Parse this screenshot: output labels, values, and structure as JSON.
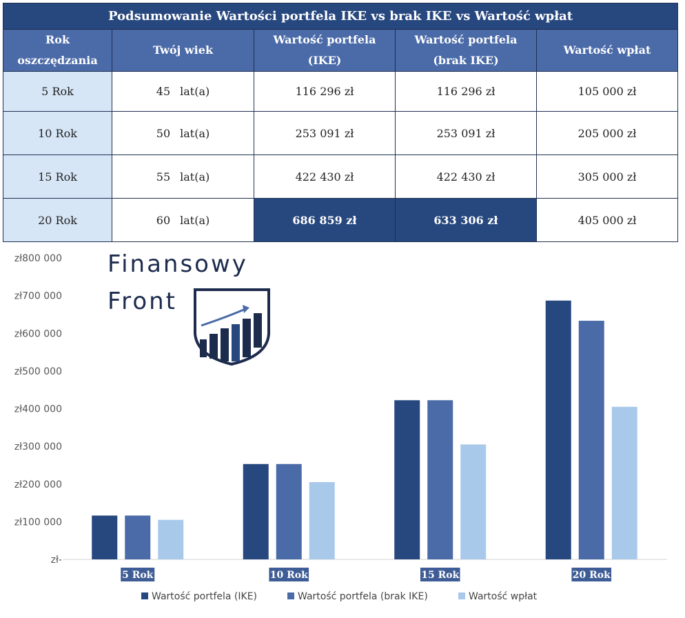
{
  "table": {
    "title": "Podsumowanie Wartości portfela IKE vs brak IKE vs Wartość wpłat",
    "headers": {
      "rok_line1": "Rok",
      "rok_line2": "oszczędzania",
      "wiek": "Twój wiek",
      "ike_line1": "Wartość portfela",
      "ike_line2": "(IKE)",
      "brak_line1": "Wartość portfela",
      "brak_line2": "(brak IKE)",
      "wplaty": "Wartość wpłat"
    },
    "rows": [
      {
        "rok": "5 Rok",
        "wiek": "45",
        "jednostka": "lat(a)",
        "ike": "116 296 zł",
        "brak": "116 296 zł",
        "wplaty": "105 000 zł"
      },
      {
        "rok": "10 Rok",
        "wiek": "50",
        "jednostka": "lat(a)",
        "ike": "253 091 zł",
        "brak": "253 091 zł",
        "wplaty": "205 000 zł"
      },
      {
        "rok": "15 Rok",
        "wiek": "55",
        "jednostka": "lat(a)",
        "ike": "422 430 zł",
        "brak": "422 430 zł",
        "wplaty": "305 000 zł"
      },
      {
        "rok": "20 Rok",
        "wiek": "60",
        "jednostka": "lat(a)",
        "ike": "686 859 zł",
        "brak": "633 306 zł",
        "wplaty": "405 000 zł"
      }
    ]
  },
  "logo": {
    "line1": "Finansowy",
    "line2": "Front"
  },
  "chart_data": {
    "type": "bar",
    "categories": [
      "5 Rok",
      "10 Rok",
      "15 Rok",
      "20 Rok"
    ],
    "series": [
      {
        "name": "Wartość portfela (IKE)",
        "color": "#27477f",
        "values": [
          116296,
          253091,
          422430,
          686859
        ]
      },
      {
        "name": "Wartość portfela (brak IKE)",
        "color": "#4a6aa8",
        "values": [
          116296,
          253091,
          422430,
          633306
        ]
      },
      {
        "name": "Wartość wpłat",
        "color": "#a9c9ea",
        "values": [
          105000,
          205000,
          305000,
          405000
        ]
      }
    ],
    "ylim": [
      0,
      800000
    ],
    "yticks": [
      {
        "value": 0,
        "label": "zł-"
      },
      {
        "value": 100000,
        "label": "zł100 000"
      },
      {
        "value": 200000,
        "label": "zł200 000"
      },
      {
        "value": 300000,
        "label": "zł300 000"
      },
      {
        "value": 400000,
        "label": "zł400 000"
      },
      {
        "value": 500000,
        "label": "zł500 000"
      },
      {
        "value": 600000,
        "label": "zł600 000"
      },
      {
        "value": 700000,
        "label": "zł700 000"
      },
      {
        "value": 800000,
        "label": "zł800 000"
      }
    ],
    "grid": false,
    "legend": "bottom"
  }
}
